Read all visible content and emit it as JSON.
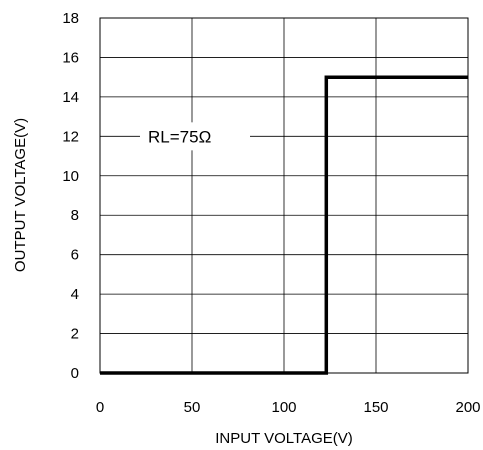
{
  "chart_data": {
    "type": "line",
    "title": "",
    "xlabel": "INPUT VOLTAGE(V)",
    "ylabel": "OUTPUT VOLTAGE(V)",
    "xlim": [
      0,
      200
    ],
    "ylim": [
      0,
      18
    ],
    "xticks": [
      0,
      50,
      100,
      150,
      200
    ],
    "yticks": [
      0,
      2,
      4,
      6,
      8,
      10,
      12,
      14,
      16,
      18
    ],
    "grid": true,
    "legend": "none",
    "annotation": "RL=75Ω",
    "series": [
      {
        "x": [
          0,
          123,
          123,
          200
        ],
        "y": [
          0,
          0,
          15,
          15
        ],
        "color": "#000000"
      }
    ]
  }
}
